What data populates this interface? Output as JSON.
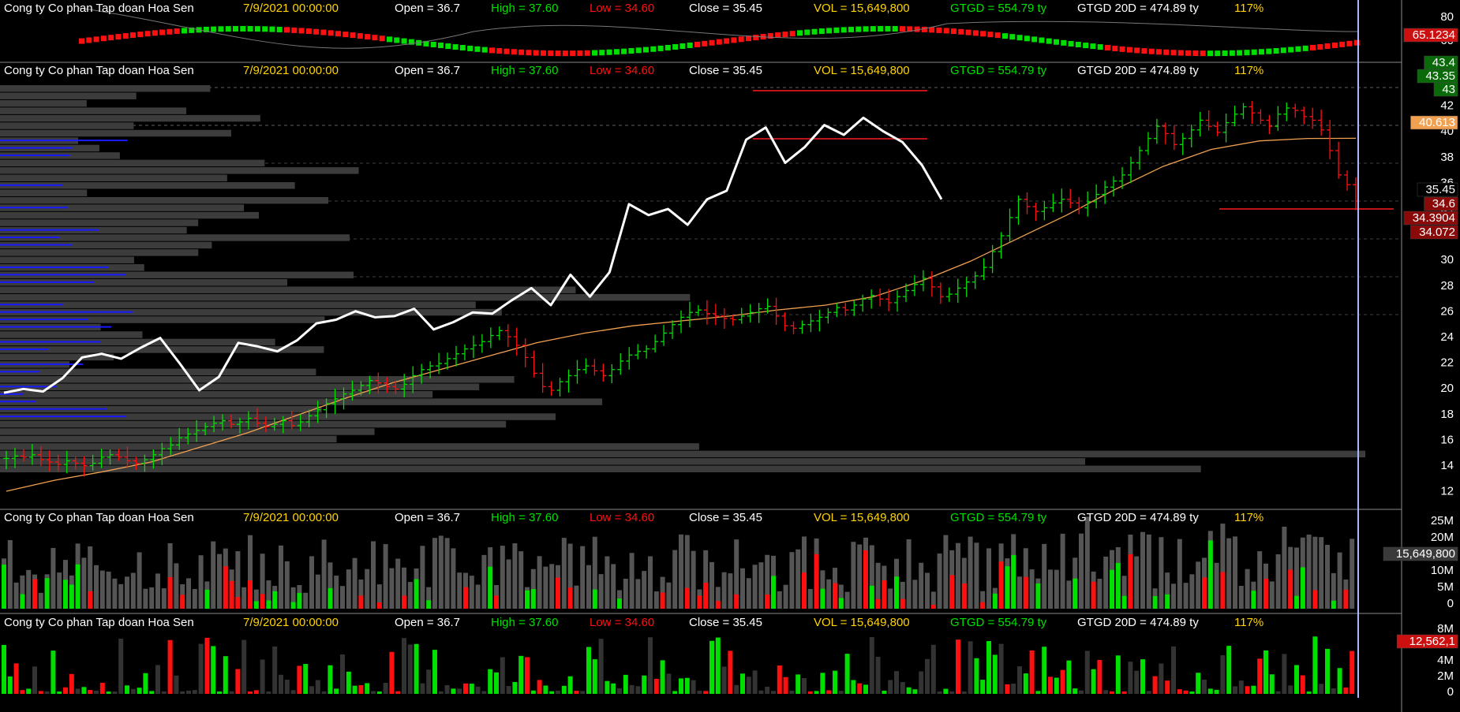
{
  "header": {
    "company": "Cong ty Co phan Tap doan Hoa Sen",
    "date": "7/9/2021 00:00:00",
    "open": "Open = 36.7",
    "high": "High = 37.60",
    "low": "Low = 34.60",
    "close": "Close = 35.45",
    "vol": "VOL = 15,649,800",
    "gtgd": "GTGD = 554.79  ty",
    "gtgd20": "GTGD 20D = 474.89  ty",
    "pct": "117%"
  },
  "colors": {
    "up": "#00e000",
    "down": "#ff1010",
    "neutral": "#6e6e6e",
    "profile_gray": "#3c3c3c",
    "profile_blue": "#1a1aff",
    "ma": "#f0a050",
    "index": "#ffffff",
    "date": "#ffd400",
    "cursor": "#a8b8ff",
    "red_line": "#ff1a1a"
  },
  "panels": {
    "oscillator": {
      "ticks": [
        "80",
        "60"
      ],
      "badge": "65.1234"
    },
    "price": {
      "ticks": [
        "44",
        "42",
        "40",
        "38",
        "36",
        "34",
        "32",
        "30",
        "28",
        "26",
        "24",
        "22",
        "20",
        "18",
        "16",
        "14",
        "12"
      ],
      "badges": [
        {
          "text": "43.4",
          "color": "#0a6a0a",
          "fg": "#ffffff"
        },
        {
          "text": "43.35",
          "color": "#0a6a0a",
          "fg": "#ffffff"
        },
        {
          "text": "43",
          "color": "#0a6a0a",
          "fg": "#ffffff"
        },
        {
          "text": "40.613",
          "color": "#f0a050",
          "fg": "#000000"
        },
        {
          "text": "35.45",
          "color": "#000000",
          "fg": "#ffffff"
        },
        {
          "text": "34.6",
          "color": "#8a0a0a",
          "fg": "#ffffff"
        },
        {
          "text": "34.3904",
          "color": "#8a0a0a",
          "fg": "#ffffff"
        },
        {
          "text": "34.072",
          "color": "#8a0a0a",
          "fg": "#ffffff"
        }
      ]
    },
    "volume": {
      "ticks": [
        "25M",
        "20M",
        "15M",
        "10M",
        "5M",
        "0"
      ],
      "badge": "15,649,800"
    },
    "flow": {
      "ticks": [
        "8M",
        "6M",
        "4M",
        "2M",
        "0"
      ],
      "badge": "12,562,1"
    }
  },
  "chart_data": {
    "type": "candlestick",
    "ylim": [
      10.5,
      45.5
    ],
    "candles_approx": [
      14.3,
      14.5,
      14.4,
      14.6,
      14.2,
      14.0,
      13.8,
      14.1,
      13.9,
      13.7,
      13.9,
      14.4,
      14.6,
      14.4,
      14.1,
      13.9,
      14.2,
      14.6,
      15.1,
      15.4,
      16.0,
      16.3,
      16.6,
      16.9,
      17.2,
      17.4,
      17.1,
      17.3,
      17.6,
      17.2,
      16.9,
      17.1,
      17.4,
      17.0,
      17.3,
      17.8,
      18.3,
      18.8,
      19.2,
      19.6,
      19.9,
      20.3,
      20.7,
      20.5,
      20.2,
      20.0,
      20.4,
      21.1,
      21.6,
      21.9,
      22.1,
      22.5,
      22.9,
      23.3,
      23.6,
      23.9,
      24.4,
      24.8,
      24.3,
      23.6,
      22.6,
      21.3,
      20.2,
      19.9,
      20.6,
      21.1,
      21.6,
      21.9,
      21.5,
      21.1,
      21.6,
      22.3,
      22.8,
      23.1,
      23.3,
      23.9,
      24.6,
      25.3,
      25.9,
      26.3,
      26.5,
      26.2,
      26.0,
      25.8,
      25.7,
      26.0,
      26.3,
      26.6,
      26.8,
      26.0,
      25.2,
      25.0,
      25.3,
      25.6,
      25.9,
      26.3,
      26.7,
      26.5,
      26.9,
      27.4,
      27.7,
      27.4,
      27.1,
      27.6,
      28.1,
      28.6,
      29.1,
      28.4,
      27.6,
      27.8,
      28.3,
      28.8,
      29.3,
      30.0,
      31.3,
      32.6,
      34.1,
      35.6,
      35.0,
      34.6,
      34.9,
      35.3,
      35.6,
      35.3,
      34.9,
      35.4,
      36.0,
      36.6,
      37.1,
      37.6,
      38.6,
      39.6,
      40.6,
      41.6,
      41.0,
      40.1,
      40.6,
      41.3,
      42.1,
      41.6,
      41.1,
      41.9,
      42.6,
      43.2,
      42.7,
      42.1,
      41.6,
      42.6,
      43.1,
      42.9,
      42.4,
      42.1,
      41.3,
      39.6,
      37.6,
      36.8,
      35.45
    ],
    "ma_approx": [
      11.6,
      12.5,
      13.2,
      14.0,
      15.2,
      16.4,
      17.8,
      19.2,
      20.5,
      21.6,
      22.7,
      23.8,
      24.6,
      25.2,
      25.6,
      26.0,
      26.5,
      26.9,
      27.6,
      28.9,
      30.5,
      32.4,
      34.3,
      36.4,
      38.3,
      39.7,
      40.4,
      40.6,
      40.613
    ],
    "index_approx": [
      19.7,
      20.0,
      19.8,
      20.9,
      22.6,
      22.9,
      22.5,
      23.4,
      24.2,
      22.1,
      19.9,
      21.0,
      23.8,
      23.5,
      23.1,
      24.0,
      25.4,
      25.7,
      26.4,
      25.9,
      26.0,
      26.6,
      24.9,
      25.5,
      26.3,
      26.2,
      27.3,
      28.3,
      26.9,
      29.4,
      27.6,
      29.6,
      35.2,
      34.3,
      34.8,
      33.5,
      35.6,
      36.3,
      40.5,
      41.5,
      38.6,
      39.9,
      41.7,
      40.9,
      42.3,
      41.2,
      40.3,
      38.4,
      35.6
    ],
    "volume_approx": [],
    "profile_rows": 52
  }
}
